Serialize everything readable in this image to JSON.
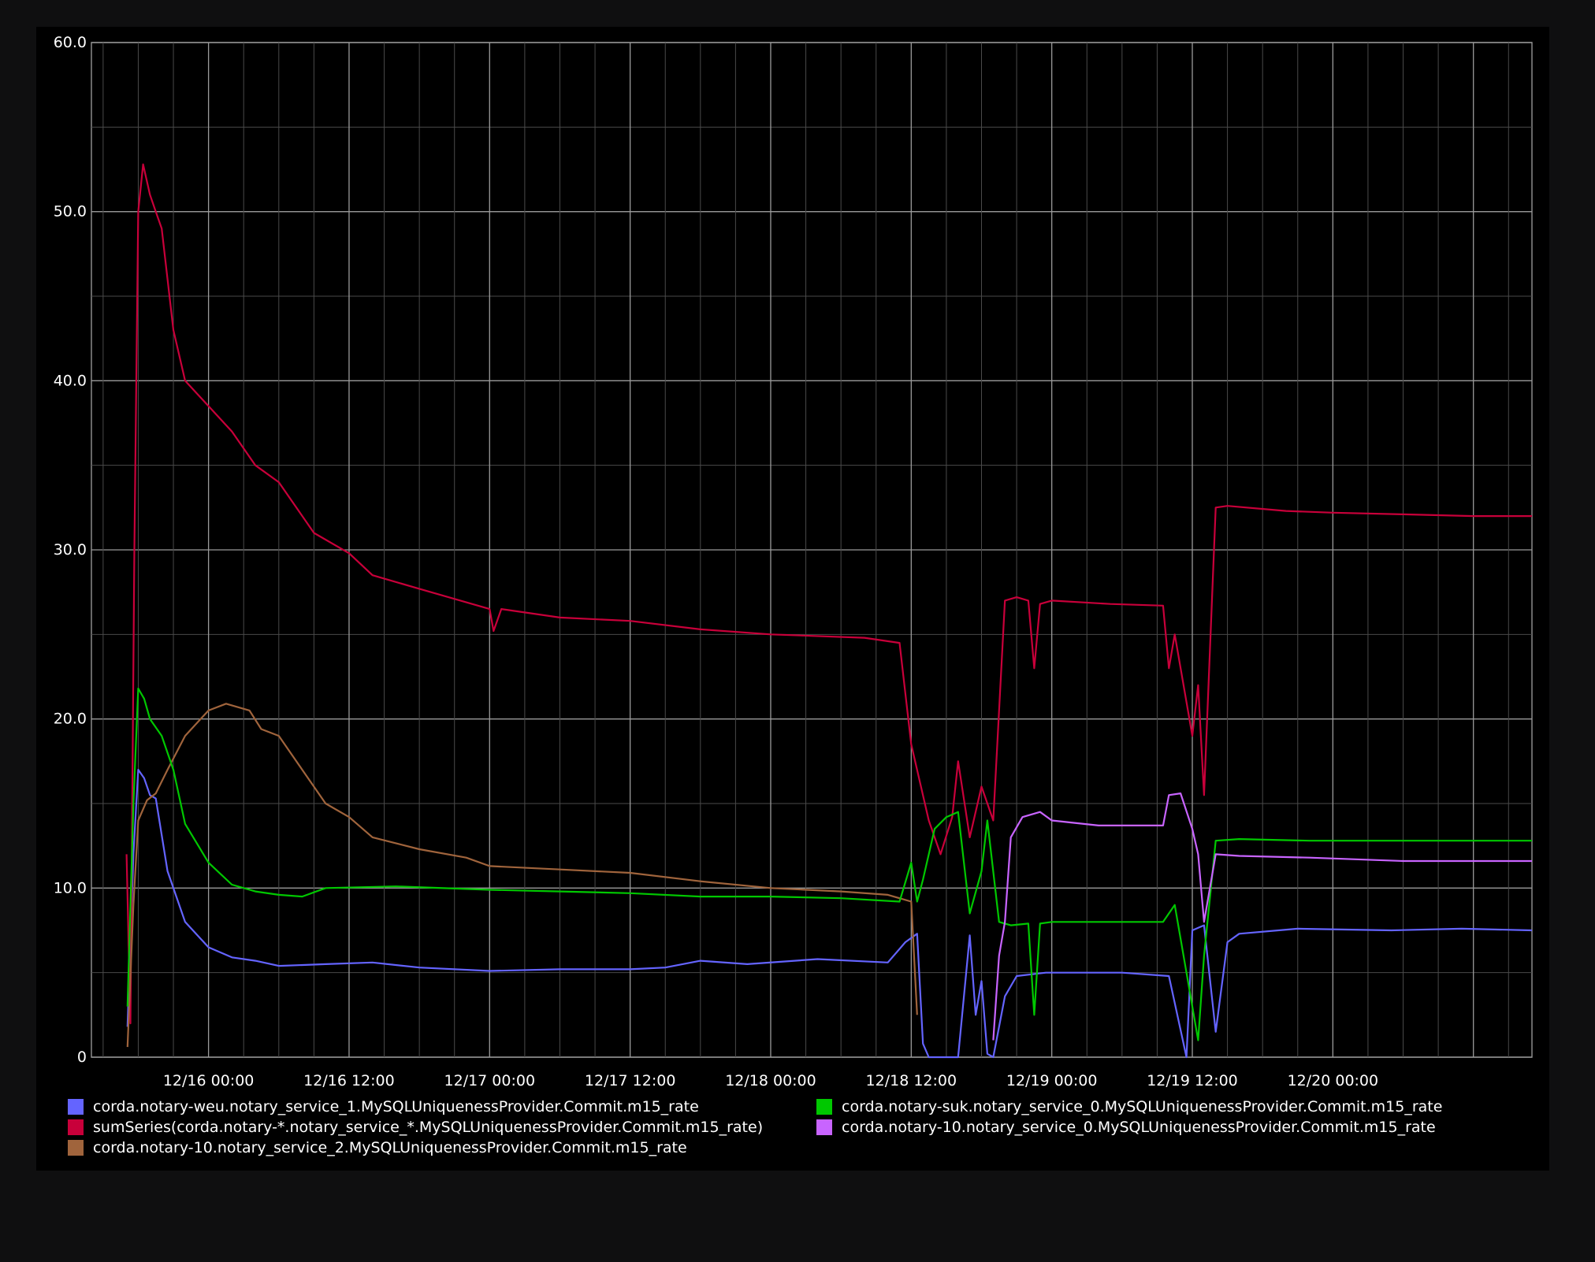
{
  "chart_data": {
    "type": "line",
    "title": "",
    "xlabel": "",
    "ylabel": "",
    "ylim": [
      0,
      60
    ],
    "xlim": [
      "12/15 14:00",
      "12/20 17:00"
    ],
    "grid": true,
    "legend_position": "bottom",
    "y_ticks": [
      "0",
      "10.0",
      "20.0",
      "30.0",
      "40.0",
      "50.0",
      "60.0"
    ],
    "x_ticks": [
      "12/16 00:00",
      "12/16 12:00",
      "12/17 00:00",
      "12/17 12:00",
      "12/18 00:00",
      "12/18 12:00",
      "12/19 00:00",
      "12/19 12:00",
      "12/20 00:00"
    ],
    "series": [
      {
        "name": "corda.notary-weu.notary_service_1.MySQLUniquenessProvider.Commit.m15_rate",
        "color": "#6464ff",
        "points": [
          [
            "12/15 17:05",
            1.8
          ],
          [
            "12/15 17:35",
            12
          ],
          [
            "12/15 18:00",
            17
          ],
          [
            "12/15 18:30",
            16.5
          ],
          [
            "12/15 19:00",
            15.5
          ],
          [
            "12/15 19:30",
            15.3
          ],
          [
            "12/15 20:30",
            11
          ],
          [
            "12/15 22:00",
            8
          ],
          [
            "12/16 00:00",
            6.5
          ],
          [
            "12/16 02:00",
            5.9
          ],
          [
            "12/16 04:00",
            5.7
          ],
          [
            "12/16 06:00",
            5.4
          ],
          [
            "12/16 10:00",
            5.5
          ],
          [
            "12/16 14:00",
            5.6
          ],
          [
            "12/16 18:00",
            5.3
          ],
          [
            "12/17 00:00",
            5.1
          ],
          [
            "12/17 06:00",
            5.2
          ],
          [
            "12/17 12:00",
            5.2
          ],
          [
            "12/17 15:00",
            5.3
          ],
          [
            "12/17 18:00",
            5.7
          ],
          [
            "12/17 22:00",
            5.5
          ],
          [
            "12/18 04:00",
            5.8
          ],
          [
            "12/18 10:00",
            5.6
          ],
          [
            "12/18 11:30",
            6.8
          ],
          [
            "12/18 12:30",
            7.3
          ],
          [
            "12/18 13:00",
            0.8
          ],
          [
            "12/18 13:30",
            0
          ],
          [
            "12/18 16:00",
            0
          ],
          [
            "12/18 17:00",
            7.2
          ],
          [
            "12/18 17:30",
            2.5
          ],
          [
            "12/18 18:00",
            4.5
          ],
          [
            "12/18 18:30",
            0.2
          ],
          [
            "12/18 19:00",
            0
          ],
          [
            "12/18 20:00",
            3.6
          ],
          [
            "12/18 21:00",
            4.8
          ],
          [
            "12/18 23:30",
            5.0
          ],
          [
            "12/19 00:30",
            5.0
          ],
          [
            "12/19 06:00",
            5.0
          ],
          [
            "12/19 10:00",
            4.8
          ],
          [
            "12/19 11:30",
            0
          ],
          [
            "12/19 12:00",
            7.5
          ],
          [
            "12/19 13:00",
            7.8
          ],
          [
            "12/19 14:00",
            1.5
          ],
          [
            "12/19 15:00",
            6.8
          ],
          [
            "12/19 16:00",
            7.3
          ],
          [
            "12/19 21:00",
            7.6
          ],
          [
            "12/20 05:00",
            7.5
          ],
          [
            "12/20 11:00",
            7.6
          ],
          [
            "12/20 17:00",
            7.5
          ]
        ]
      },
      {
        "name": "sumSeries(corda.notary-*.notary_service_*.MySQLUniquenessProvider.Commit.m15_rate)",
        "color": "#c8003a",
        "points": [
          [
            "12/15 17:00",
            12
          ],
          [
            "12/15 17:20",
            2
          ],
          [
            "12/15 17:40",
            30
          ],
          [
            "12/15 18:00",
            50
          ],
          [
            "12/15 18:25",
            52.8
          ],
          [
            "12/15 19:00",
            51
          ],
          [
            "12/15 19:30",
            50
          ],
          [
            "12/15 20:00",
            49
          ],
          [
            "12/15 21:00",
            43
          ],
          [
            "12/15 22:00",
            40
          ],
          [
            "12/16 00:00",
            38.5
          ],
          [
            "12/16 02:00",
            37
          ],
          [
            "12/16 03:00",
            36
          ],
          [
            "12/16 04:00",
            35
          ],
          [
            "12/16 06:00",
            34
          ],
          [
            "12/16 09:00",
            31
          ],
          [
            "12/16 12:00",
            29.8
          ],
          [
            "12/16 14:00",
            28.5
          ],
          [
            "12/16 18:00",
            27.7
          ],
          [
            "12/17 00:00",
            26.5
          ],
          [
            "12/17 00:20",
            25.2
          ],
          [
            "12/17 01:00",
            26.5
          ],
          [
            "12/17 06:00",
            26.0
          ],
          [
            "12/17 12:00",
            25.8
          ],
          [
            "12/17 18:00",
            25.3
          ],
          [
            "12/18 00:00",
            25.0
          ],
          [
            "12/18 08:00",
            24.8
          ],
          [
            "12/18 11:00",
            24.5
          ],
          [
            "12/18 12:00",
            18.5
          ],
          [
            "12/18 13:30",
            14
          ],
          [
            "12/18 14:30",
            12
          ],
          [
            "12/18 15:30",
            14.2
          ],
          [
            "12/18 16:00",
            17.5
          ],
          [
            "12/18 17:00",
            13
          ],
          [
            "12/18 18:00",
            16
          ],
          [
            "12/18 19:00",
            14
          ],
          [
            "12/18 20:00",
            27
          ],
          [
            "12/18 21:00",
            27.2
          ],
          [
            "12/18 22:00",
            27.0
          ],
          [
            "12/18 22:30",
            23
          ],
          [
            "12/18 23:00",
            26.8
          ],
          [
            "12/19 00:00",
            27.0
          ],
          [
            "12/19 05:00",
            26.8
          ],
          [
            "12/19 09:30",
            26.7
          ],
          [
            "12/19 10:00",
            23
          ],
          [
            "12/19 10:30",
            25
          ],
          [
            "12/19 11:30",
            21
          ],
          [
            "12/19 12:00",
            19
          ],
          [
            "12/19 12:30",
            22
          ],
          [
            "12/19 13:00",
            15.5
          ],
          [
            "12/19 14:00",
            32.5
          ],
          [
            "12/19 15:00",
            32.6
          ],
          [
            "12/19 20:00",
            32.3
          ],
          [
            "12/20 00:00",
            32.2
          ],
          [
            "12/20 06:00",
            32.1
          ],
          [
            "12/20 12:00",
            32.0
          ],
          [
            "12/20 17:00",
            32.0
          ]
        ]
      },
      {
        "name": "corda.notary-10.notary_service_2.MySQLUniquenessProvider.Commit.m15_rate",
        "color": "#a0643c",
        "points": [
          [
            "12/15 17:05",
            0.6
          ],
          [
            "12/15 17:35",
            9
          ],
          [
            "12/15 18:00",
            14
          ],
          [
            "12/15 18:45",
            15.2
          ],
          [
            "12/15 19:30",
            15.6
          ],
          [
            "12/15 20:30",
            17
          ],
          [
            "12/15 22:00",
            19
          ],
          [
            "12/16 00:00",
            20.5
          ],
          [
            "12/16 01:30",
            20.9
          ],
          [
            "12/16 03:30",
            20.5
          ],
          [
            "12/16 04:30",
            19.4
          ],
          [
            "12/16 06:00",
            19.0
          ],
          [
            "12/16 08:00",
            17
          ],
          [
            "12/16 10:00",
            15
          ],
          [
            "12/16 12:00",
            14.2
          ],
          [
            "12/16 14:00",
            13.0
          ],
          [
            "12/16 18:00",
            12.3
          ],
          [
            "12/16 22:00",
            11.8
          ],
          [
            "12/17 00:00",
            11.3
          ],
          [
            "12/17 06:00",
            11.1
          ],
          [
            "12/17 12:00",
            10.9
          ],
          [
            "12/17 18:00",
            10.4
          ],
          [
            "12/18 00:00",
            10.0
          ],
          [
            "12/18 06:00",
            9.8
          ],
          [
            "12/18 10:00",
            9.6
          ],
          [
            "12/18 12:00",
            9.2
          ],
          [
            "12/18 12:30",
            2.5
          ]
        ]
      },
      {
        "name": "corda.notary-suk.notary_service_0.MySQLUniquenessProvider.Commit.m15_rate",
        "color": "#00c800",
        "points": [
          [
            "12/15 17:05",
            3
          ],
          [
            "12/15 17:35",
            15
          ],
          [
            "12/15 18:00",
            21.8
          ],
          [
            "12/15 18:30",
            21.2
          ],
          [
            "12/15 19:00",
            20
          ],
          [
            "12/15 20:00",
            19
          ],
          [
            "12/15 21:00",
            17
          ],
          [
            "12/15 22:00",
            13.8
          ],
          [
            "12/16 00:00",
            11.5
          ],
          [
            "12/16 02:00",
            10.2
          ],
          [
            "12/16 04:00",
            9.8
          ],
          [
            "12/16 06:00",
            9.6
          ],
          [
            "12/16 08:00",
            9.5
          ],
          [
            "12/16 10:00",
            10.0
          ],
          [
            "12/16 16:00",
            10.1
          ],
          [
            "12/17 00:00",
            9.9
          ],
          [
            "12/17 06:00",
            9.8
          ],
          [
            "12/17 12:00",
            9.7
          ],
          [
            "12/17 18:00",
            9.5
          ],
          [
            "12/18 00:00",
            9.5
          ],
          [
            "12/18 06:00",
            9.4
          ],
          [
            "12/18 11:00",
            9.2
          ],
          [
            "12/18 12:00",
            11.5
          ],
          [
            "12/18 12:30",
            9.2
          ],
          [
            "12/18 13:00",
            10.5
          ],
          [
            "12/18 14:00",
            13.5
          ],
          [
            "12/18 15:00",
            14.2
          ],
          [
            "12/18 16:00",
            14.5
          ],
          [
            "12/18 17:00",
            8.5
          ],
          [
            "12/18 18:00",
            11
          ],
          [
            "12/18 18:30",
            14
          ],
          [
            "12/18 19:30",
            8
          ],
          [
            "12/18 20:30",
            7.8
          ],
          [
            "12/18 22:00",
            7.9
          ],
          [
            "12/18 22:30",
            2.5
          ],
          [
            "12/18 23:00",
            7.9
          ],
          [
            "12/19 00:00",
            8.0
          ],
          [
            "12/19 06:00",
            8.0
          ],
          [
            "12/19 09:30",
            8.0
          ],
          [
            "12/19 10:30",
            9.0
          ],
          [
            "12/19 11:30",
            5
          ],
          [
            "12/19 12:30",
            1
          ],
          [
            "12/19 13:00",
            6
          ],
          [
            "12/19 14:00",
            12.8
          ],
          [
            "12/19 16:00",
            12.9
          ],
          [
            "12/19 22:00",
            12.8
          ],
          [
            "12/20 06:00",
            12.8
          ],
          [
            "12/20 17:00",
            12.8
          ]
        ]
      },
      {
        "name": "corda.notary-10.notary_service_0.MySQLUniquenessProvider.Commit.m15_rate",
        "color": "#c864ff",
        "points": [
          [
            "12/18 19:00",
            1
          ],
          [
            "12/18 19:30",
            6
          ],
          [
            "12/18 20:00",
            8
          ],
          [
            "12/18 20:30",
            13
          ],
          [
            "12/18 21:30",
            14.2
          ],
          [
            "12/18 23:00",
            14.5
          ],
          [
            "12/19 00:00",
            14.0
          ],
          [
            "12/19 04:00",
            13.7
          ],
          [
            "12/19 09:30",
            13.7
          ],
          [
            "12/19 10:00",
            15.5
          ],
          [
            "12/19 11:00",
            15.6
          ],
          [
            "12/19 12:00",
            13.5
          ],
          [
            "12/19 12:30",
            12
          ],
          [
            "12/19 13:00",
            8
          ],
          [
            "12/19 14:00",
            12.0
          ],
          [
            "12/19 16:00",
            11.9
          ],
          [
            "12/19 22:00",
            11.8
          ],
          [
            "12/20 06:00",
            11.6
          ],
          [
            "12/20 17:00",
            11.6
          ]
        ]
      }
    ]
  }
}
